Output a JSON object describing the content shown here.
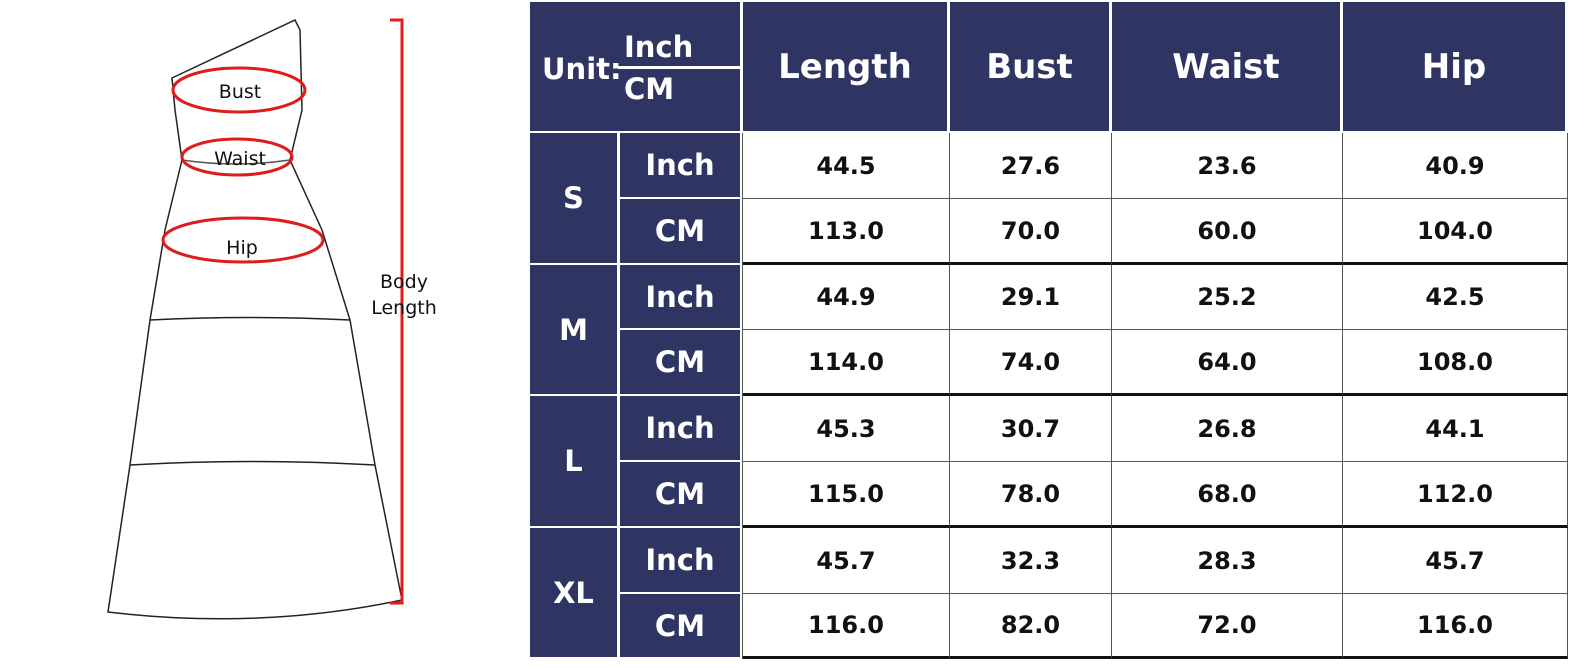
{
  "figure": {
    "labels": {
      "bust": "Bust",
      "waist": "Waist",
      "hip": "Hip",
      "body_length_1": "Body",
      "body_length_2": "Length"
    },
    "accent": "#e01b1b"
  },
  "table": {
    "header_color": "#2f3563",
    "unit_label": "Unit:",
    "unit_top": "Inch",
    "unit_bottom": "CM",
    "columns": [
      "Length",
      "Bust",
      "Waist",
      "Hip"
    ],
    "sizes": [
      {
        "size": "S",
        "rows": [
          {
            "unit": "Inch",
            "values": [
              "44.5",
              "27.6",
              "23.6",
              "40.9"
            ]
          },
          {
            "unit": "CM",
            "values": [
              "113.0",
              "70.0",
              "60.0",
              "104.0"
            ]
          }
        ]
      },
      {
        "size": "M",
        "rows": [
          {
            "unit": "Inch",
            "values": [
              "44.9",
              "29.1",
              "25.2",
              "42.5"
            ]
          },
          {
            "unit": "CM",
            "values": [
              "114.0",
              "74.0",
              "64.0",
              "108.0"
            ]
          }
        ]
      },
      {
        "size": "L",
        "rows": [
          {
            "unit": "Inch",
            "values": [
              "45.3",
              "30.7",
              "26.8",
              "44.1"
            ]
          },
          {
            "unit": "CM",
            "values": [
              "115.0",
              "78.0",
              "68.0",
              "112.0"
            ]
          }
        ]
      },
      {
        "size": "XL",
        "rows": [
          {
            "unit": "Inch",
            "values": [
              "45.7",
              "32.3",
              "28.3",
              "45.7"
            ]
          },
          {
            "unit": "CM",
            "values": [
              "116.0",
              "82.0",
              "72.0",
              "116.0"
            ]
          }
        ]
      }
    ]
  }
}
